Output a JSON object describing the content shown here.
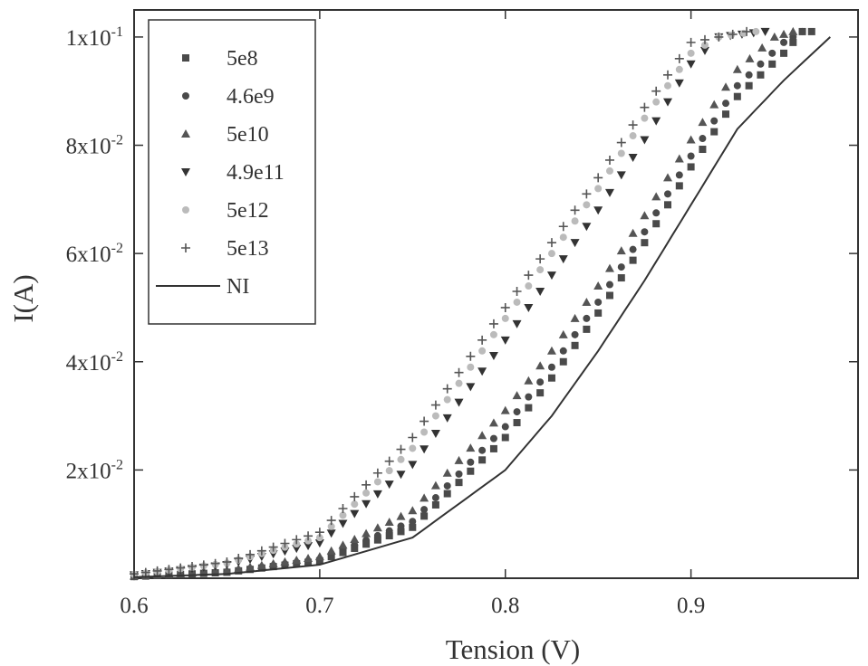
{
  "chart_data": {
    "type": "scatter",
    "xlabel": "Tension (V)",
    "ylabel": "I(A)",
    "xlim": [
      0.6,
      0.99
    ],
    "ylim": [
      0.0,
      0.105
    ],
    "x_ticks": [
      {
        "value": 0.6,
        "label": "0.6"
      },
      {
        "value": 0.7,
        "label": "0.7"
      },
      {
        "value": 0.8,
        "label": "0.8"
      },
      {
        "value": 0.9,
        "label": "0.9"
      }
    ],
    "y_ticks": [
      {
        "value": 0.02,
        "base": "2x10",
        "exp": "-2"
      },
      {
        "value": 0.04,
        "base": "4x10",
        "exp": "-2"
      },
      {
        "value": 0.06,
        "base": "6x10",
        "exp": "-2"
      },
      {
        "value": 0.08,
        "base": "8x10",
        "exp": "-2"
      },
      {
        "value": 0.1,
        "base": "1x10",
        "exp": "-1"
      }
    ],
    "grid": false,
    "legend_position": "top-left",
    "series": [
      {
        "name": "5e8",
        "marker": "square",
        "color": "#4a4a4a",
        "points": [
          [
            0.6,
            0.0003
          ],
          [
            0.65,
            0.0011
          ],
          [
            0.7,
            0.0032
          ],
          [
            0.75,
            0.0094
          ],
          [
            0.8,
            0.026
          ],
          [
            0.825,
            0.037
          ],
          [
            0.85,
            0.049
          ],
          [
            0.875,
            0.062
          ],
          [
            0.9,
            0.076
          ],
          [
            0.925,
            0.089
          ],
          [
            0.95,
            0.097
          ],
          [
            0.96,
            0.101
          ],
          [
            0.965,
            0.101
          ]
        ]
      },
      {
        "name": "4.6e9",
        "marker": "circle",
        "color": "#4a4a4a",
        "points": [
          [
            0.6,
            0.0003
          ],
          [
            0.65,
            0.0012
          ],
          [
            0.7,
            0.0035
          ],
          [
            0.75,
            0.0105
          ],
          [
            0.8,
            0.028
          ],
          [
            0.825,
            0.039
          ],
          [
            0.85,
            0.051
          ],
          [
            0.875,
            0.064
          ],
          [
            0.9,
            0.078
          ],
          [
            0.925,
            0.091
          ],
          [
            0.95,
            0.099
          ],
          [
            0.96,
            0.101
          ]
        ]
      },
      {
        "name": "5e10",
        "marker": "triangle-up",
        "color": "#555555",
        "points": [
          [
            0.6,
            0.0004
          ],
          [
            0.65,
            0.0014
          ],
          [
            0.7,
            0.004
          ],
          [
            0.75,
            0.0125
          ],
          [
            0.8,
            0.031
          ],
          [
            0.825,
            0.042
          ],
          [
            0.85,
            0.054
          ],
          [
            0.875,
            0.067
          ],
          [
            0.9,
            0.081
          ],
          [
            0.925,
            0.094
          ],
          [
            0.945,
            0.1
          ],
          [
            0.955,
            0.101
          ]
        ]
      },
      {
        "name": "4.9e11",
        "marker": "triangle-down",
        "color": "#333333",
        "points": [
          [
            0.6,
            0.0006
          ],
          [
            0.65,
            0.0025
          ],
          [
            0.7,
            0.0065
          ],
          [
            0.75,
            0.021
          ],
          [
            0.8,
            0.044
          ],
          [
            0.825,
            0.056
          ],
          [
            0.85,
            0.068
          ],
          [
            0.875,
            0.081
          ],
          [
            0.9,
            0.095
          ],
          [
            0.915,
            0.1
          ],
          [
            0.94,
            0.101
          ]
        ]
      },
      {
        "name": "5e12",
        "marker": "circle",
        "color": "#bbbbbb",
        "points": [
          [
            0.6,
            0.0007
          ],
          [
            0.65,
            0.0028
          ],
          [
            0.7,
            0.0075
          ],
          [
            0.75,
            0.024
          ],
          [
            0.8,
            0.048
          ],
          [
            0.825,
            0.06
          ],
          [
            0.85,
            0.072
          ],
          [
            0.875,
            0.085
          ],
          [
            0.9,
            0.097
          ],
          [
            0.915,
            0.1
          ],
          [
            0.935,
            0.101
          ]
        ]
      },
      {
        "name": "5e13",
        "marker": "plus",
        "color": "#555555",
        "points": [
          [
            0.6,
            0.0008
          ],
          [
            0.65,
            0.003
          ],
          [
            0.7,
            0.0085
          ],
          [
            0.75,
            0.026
          ],
          [
            0.8,
            0.05
          ],
          [
            0.825,
            0.062
          ],
          [
            0.85,
            0.074
          ],
          [
            0.875,
            0.087
          ],
          [
            0.9,
            0.099
          ],
          [
            0.915,
            0.1
          ],
          [
            0.93,
            0.101
          ]
        ]
      },
      {
        "name": "NI",
        "marker": "line",
        "color": "#333333",
        "points": [
          [
            0.6,
            0.0002
          ],
          [
            0.65,
            0.0008
          ],
          [
            0.7,
            0.0025
          ],
          [
            0.75,
            0.0075
          ],
          [
            0.8,
            0.02
          ],
          [
            0.825,
            0.03
          ],
          [
            0.85,
            0.042
          ],
          [
            0.875,
            0.055
          ],
          [
            0.9,
            0.069
          ],
          [
            0.925,
            0.083
          ],
          [
            0.95,
            0.092
          ],
          [
            0.975,
            0.1
          ]
        ]
      }
    ]
  }
}
